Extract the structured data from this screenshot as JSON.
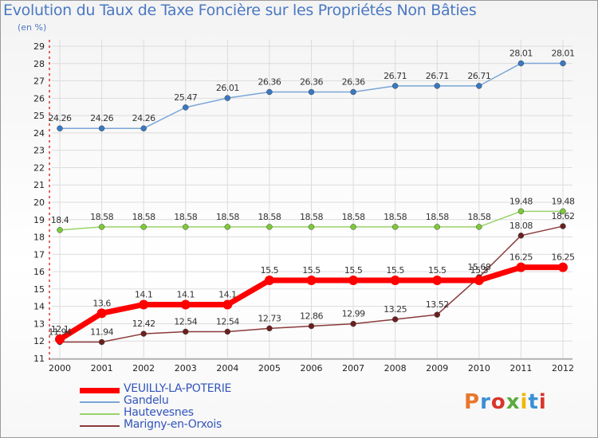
{
  "title": "Evolution du Taux de Taxe Foncière sur les Propriétés Non Bâties",
  "unit": "(en %)",
  "logo": {
    "text": "Proxiti",
    "colors": [
      "#e8772e",
      "#3a8fd6",
      "#d9342b",
      "#5aab3c",
      "#f2b600",
      "#3a8fd6",
      "#d9342b"
    ]
  },
  "chart_data": {
    "type": "line",
    "title": "Evolution du Taux de Taxe Foncière sur les Propriétés Non Bâties",
    "ylabel": "(en %)",
    "xlabel": "",
    "x": [
      "2000",
      "2001",
      "2002",
      "2003",
      "2004",
      "2005",
      "2006",
      "2007",
      "2008",
      "2009",
      "2010",
      "2011",
      "2012"
    ],
    "ylim": [
      11,
      29
    ],
    "yticks": [
      11,
      12,
      13,
      14,
      15,
      16,
      17,
      18,
      19,
      20,
      21,
      22,
      23,
      24,
      25,
      26,
      27,
      28,
      29
    ],
    "grid": true,
    "legend_position": "bottom-left",
    "series": [
      {
        "name": "VEUILLY-LA-POTERIE",
        "color": "#ff0000",
        "width": 7,
        "marker": 6,
        "values": [
          12.1,
          13.6,
          14.1,
          14.1,
          14.1,
          15.5,
          15.5,
          15.5,
          15.5,
          15.5,
          15.5,
          16.25,
          16.25
        ],
        "labels": [
          "12.1",
          "13.6",
          "14.1",
          "14.1",
          "14.1",
          "15.5",
          "15.5",
          "15.5",
          "15.5",
          "15.5",
          "15.5",
          "16.25",
          "16.25"
        ]
      },
      {
        "name": "Gandelu",
        "color": "#7aa6d6",
        "width": 1.5,
        "marker": 3.5,
        "values": [
          24.26,
          24.26,
          24.26,
          25.47,
          26.01,
          26.36,
          26.36,
          26.36,
          26.71,
          26.71,
          26.71,
          28.01,
          28.01
        ],
        "labels": [
          "24.26",
          "24.26",
          "24.26",
          "25.47",
          "26.01",
          "26.36",
          "26.36",
          "26.36",
          "26.71",
          "26.71",
          "26.71",
          "28.01",
          "28.01"
        ]
      },
      {
        "name": "Hautevesnes",
        "color": "#99d36a",
        "width": 1.5,
        "marker": 3.5,
        "values": [
          18.4,
          18.58,
          18.58,
          18.58,
          18.58,
          18.58,
          18.58,
          18.58,
          18.58,
          18.58,
          18.58,
          19.48,
          19.48
        ],
        "labels": [
          "18.4",
          "18.58",
          "18.58",
          "18.58",
          "18.58",
          "18.58",
          "18.58",
          "18.58",
          "18.58",
          "18.58",
          "18.58",
          "19.48",
          "19.48"
        ]
      },
      {
        "name": "Marigny-en-Orxois",
        "color": "#8a3a3a",
        "width": 1.5,
        "marker": 3.5,
        "values": [
          11.94,
          11.94,
          12.42,
          12.54,
          12.54,
          12.73,
          12.86,
          12.99,
          13.25,
          13.52,
          15.68,
          18.08,
          18.62
        ],
        "labels": [
          "11.94",
          "11.94",
          "12.42",
          "12.54",
          "12.54",
          "12.73",
          "12.86",
          "12.99",
          "13.25",
          "13.52",
          "15.68",
          "18.08",
          "18.62"
        ]
      }
    ]
  }
}
